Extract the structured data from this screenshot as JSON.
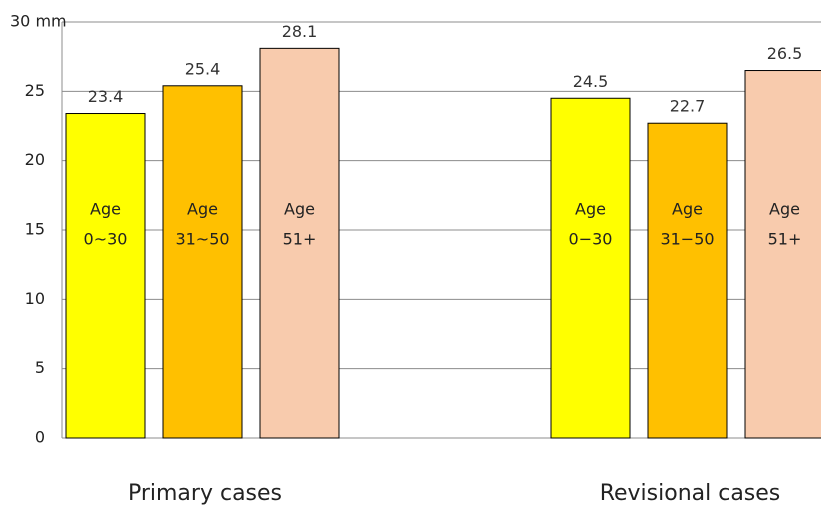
{
  "chart_data": {
    "type": "bar",
    "categories": [
      "Primary cases",
      "Revisional cases"
    ],
    "series": [
      {
        "labels": [
          [
            "Age",
            "0~30"
          ],
          [
            "Age",
            "0−30"
          ]
        ],
        "color": "#ffff00",
        "values": [
          23.4,
          24.5
        ]
      },
      {
        "labels": [
          [
            "Age",
            "31~50"
          ],
          [
            "Age",
            "31−50"
          ]
        ],
        "color": "#ffc000",
        "values": [
          25.4,
          22.7
        ]
      },
      {
        "labels": [
          [
            "Age",
            "51+"
          ],
          [
            "Age",
            "51+"
          ]
        ],
        "color": "#f8cbad",
        "values": [
          28.1,
          26.5
        ]
      }
    ],
    "ylim": [
      0,
      30
    ],
    "yticks": [
      0,
      5,
      10,
      15,
      20,
      25,
      {
        "value": 30,
        "label": "30 mm"
      }
    ],
    "grid": true
  }
}
